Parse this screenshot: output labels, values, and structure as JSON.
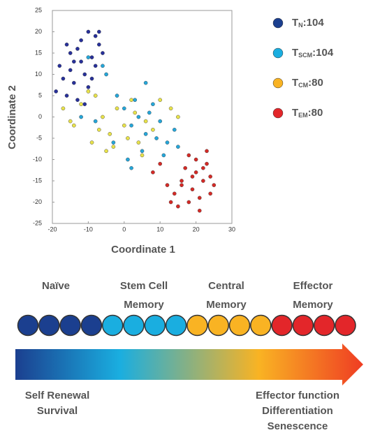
{
  "chart_data": {
    "type": "scatter",
    "x_label": "Coordinate 1",
    "y_label": "Coordinate 2",
    "xlim": [
      -20,
      30
    ],
    "xticks": [
      -20,
      -10,
      0,
      10,
      20,
      30
    ],
    "ylim": [
      -25,
      25
    ],
    "yticks": [
      -25,
      -20,
      -15,
      -10,
      -5,
      0,
      5,
      10,
      15,
      20,
      25
    ],
    "series": [
      {
        "name": "T",
        "subscript": "N",
        "count_label": ":104",
        "color": "#27309a",
        "x": [
          -18,
          -15,
          -12,
          -10,
          -8,
          -14,
          -16,
          -11,
          -9,
          -7,
          -13,
          -17,
          -12,
          -10,
          -6,
          -15,
          -19,
          -8,
          -11,
          -13,
          -9,
          -14,
          -16,
          -7
        ],
        "values": [
          12,
          15,
          18,
          20,
          19,
          8,
          5,
          10,
          14,
          17,
          4,
          9,
          13,
          7,
          15,
          11,
          6,
          12,
          3,
          16,
          9,
          13,
          17,
          20
        ]
      },
      {
        "name": "T",
        "subscript": "SCM",
        "count_label": ":104",
        "color": "#25a6d9",
        "x": [
          -10,
          -5,
          -2,
          0,
          2,
          4,
          6,
          8,
          10,
          12,
          14,
          -8,
          1,
          5,
          9,
          3,
          7,
          -3,
          11,
          15,
          -12,
          6,
          2,
          -6
        ],
        "values": [
          14,
          10,
          5,
          2,
          -2,
          0,
          -4,
          3,
          -1,
          -6,
          -3,
          -1,
          -10,
          -8,
          -5,
          4,
          1,
          -6,
          -9,
          -7,
          0,
          8,
          -12,
          12
        ]
      },
      {
        "name": "T",
        "subscript": "CM",
        "count_label": ":80",
        "color": "#e8e24a",
        "x": [
          -17,
          -15,
          -12,
          -8,
          -6,
          -4,
          -2,
          0,
          2,
          4,
          6,
          -10,
          -7,
          -3,
          1,
          3,
          8,
          10,
          13,
          -14,
          -9,
          -5,
          5,
          15
        ],
        "values": [
          2,
          -1,
          3,
          5,
          0,
          -4,
          2,
          -2,
          4,
          -6,
          -1,
          6,
          -3,
          -7,
          -5,
          1,
          -3,
          4,
          2,
          -2,
          -6,
          -8,
          -9,
          0
        ]
      },
      {
        "name": "T",
        "subscript": "EM",
        "count_label": ":80",
        "color": "#d42a26",
        "x": [
          8,
          12,
          14,
          16,
          18,
          20,
          22,
          24,
          25,
          19,
          21,
          23,
          17,
          15,
          22,
          20,
          18,
          24,
          10,
          13,
          21,
          16,
          19,
          23
        ],
        "values": [
          -13,
          -16,
          -18,
          -15,
          -20,
          -10,
          -12,
          -14,
          -16,
          -17,
          -19,
          -8,
          -12,
          -21,
          -15,
          -13,
          -9,
          -18,
          -11,
          -20,
          -22,
          -16,
          -14,
          -11
        ]
      }
    ],
    "legend_colors": [
      "#1b3f8f",
      "#1aaee0",
      "#f9b323",
      "#e3262a"
    ]
  },
  "diagram": {
    "stages": [
      [
        "Naïve"
      ],
      [
        "Stem Cell",
        "Memory"
      ],
      [
        "Central",
        "Memory"
      ],
      [
        "Effector",
        "Memory"
      ]
    ],
    "circle_colors": [
      "#1b3f8f",
      "#1b3f8f",
      "#1b3f8f",
      "#1b3f8f",
      "#1aaee0",
      "#1aaee0",
      "#1aaee0",
      "#1aaee0",
      "#f9b323",
      "#f9b323",
      "#f9b323",
      "#f9b323",
      "#e3262a",
      "#e3262a",
      "#e3262a",
      "#e3262a"
    ],
    "left_labels": [
      "Self Renewal",
      "Survival"
    ],
    "right_labels": [
      "Effector function",
      "Differentiation",
      "Senescence"
    ]
  }
}
